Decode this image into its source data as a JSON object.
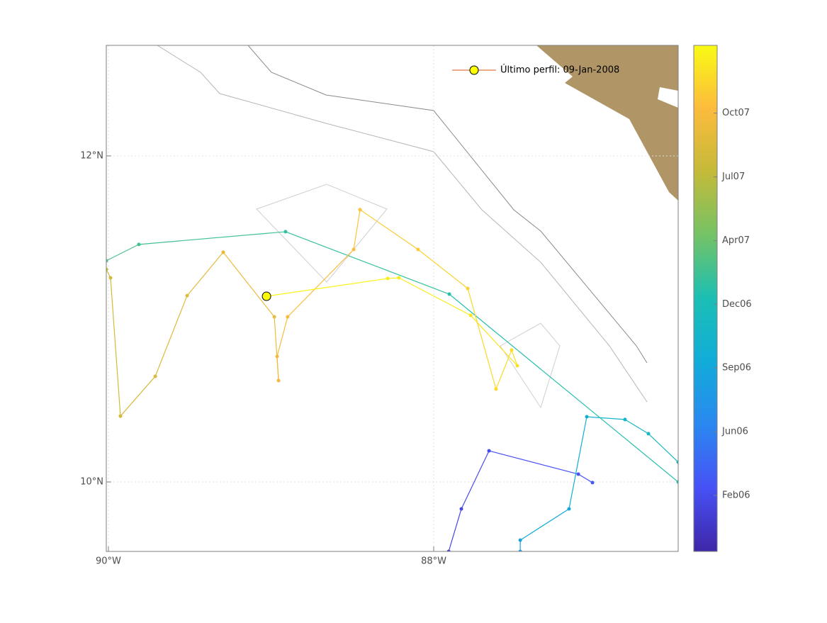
{
  "chart_data": {
    "type": "map",
    "legend": {
      "label": "Último perfil: 09-Jan-2008",
      "position": "top right",
      "line_color": "#d95319",
      "marker_color": "#ffff00"
    },
    "x": [
      -87.908,
      -87.83,
      -87.66,
      -87.111,
      -87.024,
      null,
      -87.468,
      -87.468,
      -87.168,
      -87.059,
      -86.824,
      -86.68,
      -86.497,
      null,
      -86.497,
      -87.904,
      -88.911,
      -89.813,
      -90.013,
      null,
      -90.013,
      -89.987,
      -89.926,
      -89.712,
      -89.516,
      -89.294,
      -88.98,
      -88.954,
      -88.963,
      -88.898,
      -88.492,
      -88.453,
      -88.096,
      -87.791,
      -87.617,
      -87.521,
      -87.486,
      -87.773,
      -88.214,
      -88.283,
      -89.028
    ],
    "y": [
      9.574,
      9.835,
      10.191,
      10.048,
      9.996,
      null,
      9.574,
      9.643,
      9.835,
      10.4,
      10.383,
      10.296,
      10.122,
      null,
      10.0,
      11.152,
      11.535,
      11.457,
      11.357,
      null,
      11.304,
      11.252,
      10.404,
      10.648,
      11.143,
      11.409,
      11.013,
      10.622,
      10.77,
      11.013,
      11.426,
      11.67,
      11.426,
      11.187,
      10.57,
      10.809,
      10.713,
      11.022,
      11.252,
      11.248,
      11.139
    ],
    "c": [
      20,
      30,
      40,
      50,
      60,
      null,
      200,
      205,
      225,
      245,
      265,
      285,
      295,
      null,
      320,
      335,
      350,
      365,
      375,
      null,
      520,
      525,
      530,
      540,
      550,
      560,
      570,
      575,
      580,
      590,
      600,
      610,
      620,
      630,
      640,
      645,
      650,
      660,
      670,
      675,
      680
    ],
    "xlim": [
      -90.013,
      -86.497
    ],
    "ylim": [
      9.574,
      12.678
    ],
    "xticks": [
      {
        "value": -90,
        "label": "90°W"
      },
      {
        "value": -88,
        "label": "88°W"
      }
    ],
    "yticks": [
      {
        "value": 10,
        "label": "10°N"
      },
      {
        "value": 12,
        "label": "12°N"
      }
    ],
    "clim": [
      -41,
      690
    ],
    "cticks": [
      {
        "value": 40,
        "label": "Feb06"
      },
      {
        "value": 132,
        "label": "Jun06"
      },
      {
        "value": 224,
        "label": "Sep06"
      },
      {
        "value": 316,
        "label": "Dec06"
      },
      {
        "value": 408,
        "label": "Apr07"
      },
      {
        "value": 500,
        "label": "Jul07"
      },
      {
        "value": 592,
        "label": "Oct07"
      }
    ],
    "colormap": [
      "#3e26a8",
      "#4751f5",
      "#2b87f0",
      "#12acd9",
      "#1bbfb4",
      "#74c366",
      "#c4ba39",
      "#fcbb3d",
      "#f9fa14"
    ],
    "grid": true
  }
}
